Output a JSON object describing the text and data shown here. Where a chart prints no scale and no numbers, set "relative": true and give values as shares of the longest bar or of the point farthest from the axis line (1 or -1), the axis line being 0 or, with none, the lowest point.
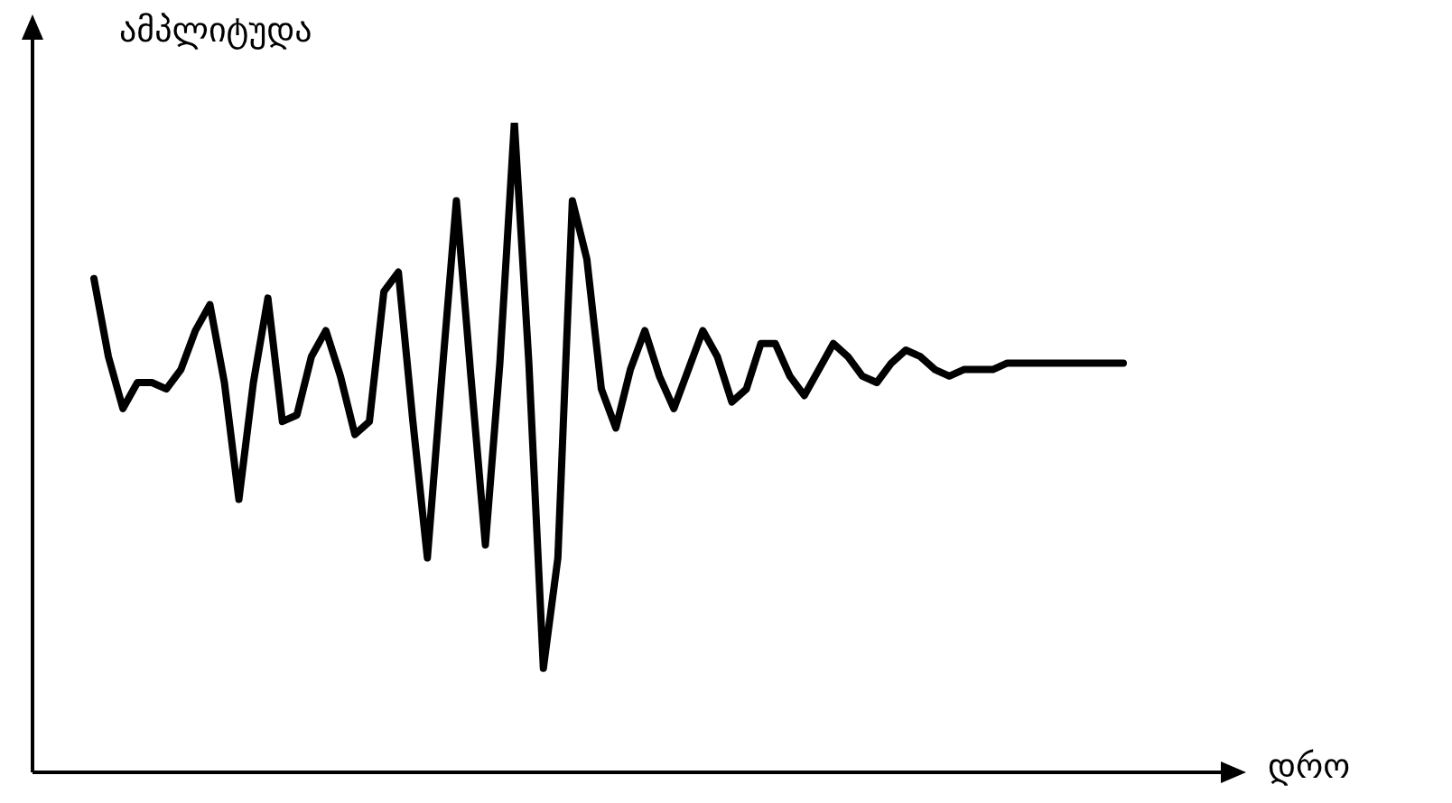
{
  "chart_data": {
    "type": "line",
    "relative": true,
    "xlabel": "დრო",
    "ylabel": "ამპლიტუდა",
    "legend": false,
    "marker": "none",
    "line_style": "solid",
    "categories": [
      null,
      null,
      null,
      null,
      null,
      null,
      null,
      null,
      null,
      null,
      null,
      null,
      null,
      null,
      null,
      null,
      null,
      null,
      null,
      null,
      null,
      null,
      null,
      null,
      null,
      null,
      null,
      null,
      null,
      null,
      null,
      null,
      null,
      null,
      null,
      null,
      null,
      null,
      null,
      null,
      null,
      null,
      null,
      null,
      null,
      null,
      null,
      null,
      null,
      null,
      null,
      null,
      null,
      null,
      null,
      null,
      null,
      null,
      null,
      null,
      null,
      null,
      null,
      null,
      null,
      null,
      null,
      null,
      null,
      null,
      null,
      null
    ],
    "series": [
      {
        "color": "#000000",
        "values": [
          0.76,
          0.64,
          0.56,
          0.6,
          0.6,
          0.59,
          0.62,
          0.68,
          0.72,
          0.6,
          0.42,
          0.6,
          0.73,
          0.54,
          0.55,
          0.64,
          0.68,
          0.61,
          0.52,
          0.54,
          0.74,
          0.77,
          0.54,
          0.33,
          0.61,
          0.88,
          0.61,
          0.35,
          0.63,
          1,
          0.63,
          0.16,
          0.33,
          0.88,
          0.79,
          0.59,
          0.53,
          0.62,
          0.68,
          0.61,
          0.56,
          0.62,
          0.68,
          0.64,
          0.57,
          0.59,
          0.66,
          0.66,
          0.61,
          0.58,
          0.62,
          0.66,
          0.64,
          0.61,
          0.6,
          0.63,
          0.65,
          0.64,
          0.62,
          0.61,
          0.62,
          0.62,
          0.62,
          0.63,
          0.63,
          0.63,
          0.63,
          0.63,
          0.63,
          0.63,
          0.63,
          0.63
        ]
      }
    ]
  }
}
